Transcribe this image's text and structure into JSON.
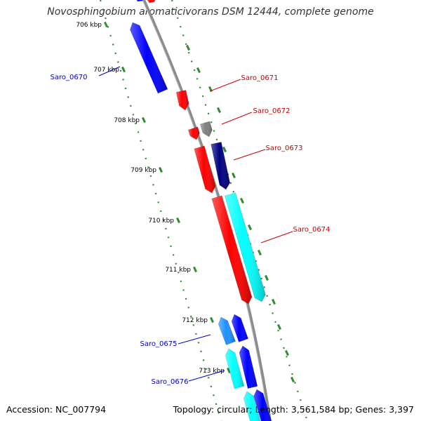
{
  "title": "Novosphingobium aromaticivorans DSM 12444, complete genome",
  "footer": {
    "accession": "Accession: NC_007794",
    "stats": "Topology: circular; Length: 3,561,584 bp; Genes: 3,397"
  },
  "axis": {
    "unit": "kbp",
    "ticks": [
      "706 kbp",
      "707 kbp",
      "708 kbp",
      "709 kbp",
      "710 kbp",
      "711 kbp",
      "712 kbp",
      "713 kbp"
    ]
  },
  "colors": {
    "backbone": "#8c8c8c",
    "tick_marks": "#2e8b2e",
    "forward_label": "#cc0000",
    "reverse_label": "#0000cc"
  },
  "genes": [
    {
      "label": "Saro_0670",
      "strand": "reverse",
      "color": "#0000ff"
    },
    {
      "label": "Saro_0671",
      "strand": "forward",
      "color": "#ff0000"
    },
    {
      "label": "Saro_0672",
      "strand": "forward",
      "color": "#808080"
    },
    {
      "label": "Saro_0673",
      "strand": "forward",
      "color": "#000080"
    },
    {
      "label": "Saro_0674",
      "strand": "forward",
      "color": "#00ffff"
    },
    {
      "label": "Saro_0675",
      "strand": "reverse",
      "color": "#1e90ff"
    },
    {
      "label": "Saro_0676",
      "strand": "reverse",
      "color": "#00ffff"
    }
  ]
}
